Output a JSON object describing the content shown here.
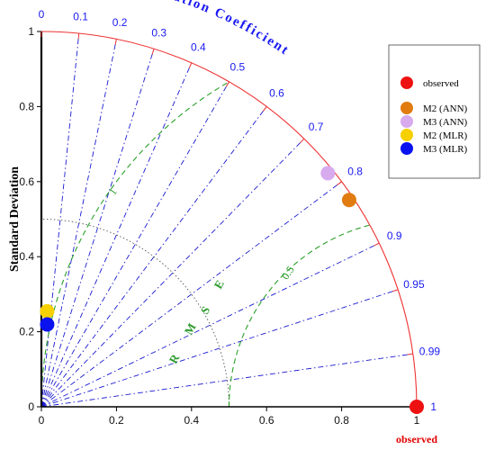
{
  "chart_data": {
    "type": "scatter",
    "subtype": "taylor-diagram",
    "ylabel": "Standard Deviation",
    "xlabel": "observed",
    "arc_title": "Correlation Coefficient",
    "rmse_label": "RMSE",
    "xlim": [
      0,
      1
    ],
    "ylim": [
      0,
      1
    ],
    "std_ticks": [
      {
        "value": 0,
        "label": "0"
      },
      {
        "value": 0.2,
        "label": "0.2"
      },
      {
        "value": 0.4,
        "label": "0.4"
      },
      {
        "value": 0.6,
        "label": "0.6"
      },
      {
        "value": 0.8,
        "label": "0.8"
      },
      {
        "value": 1,
        "label": "1"
      }
    ],
    "correlation_ticks": [
      {
        "value": 0,
        "label": "0"
      },
      {
        "value": 0.1,
        "label": "0.1"
      },
      {
        "value": 0.2,
        "label": "0.2"
      },
      {
        "value": 0.3,
        "label": "0.3"
      },
      {
        "value": 0.4,
        "label": "0.4"
      },
      {
        "value": 0.5,
        "label": "0.5"
      },
      {
        "value": 0.6,
        "label": "0.6"
      },
      {
        "value": 0.7,
        "label": "0.7"
      },
      {
        "value": 0.8,
        "label": "0.8"
      },
      {
        "value": 0.9,
        "label": "0.9"
      },
      {
        "value": 0.95,
        "label": "0.95"
      },
      {
        "value": 0.99,
        "label": "0.99"
      },
      {
        "value": 1,
        "label": "1"
      }
    ],
    "rmse_contours": [
      {
        "value": 0.5,
        "label": "0.5"
      },
      {
        "value": 1,
        "label": "1"
      }
    ],
    "ref_std_arc": 0.5,
    "grid": true,
    "legend_position": "top-right",
    "series": [
      {
        "name": "observed",
        "color": "#ee1111",
        "std": 1.0,
        "corr": 1.0
      },
      {
        "name": "M2 (ANN)",
        "color": "#e07c10",
        "std": 0.988,
        "corr": 0.83
      },
      {
        "name": "M3 (ANN)",
        "color": "#d8aaee",
        "std": 0.985,
        "corr": 0.775
      },
      {
        "name": "M2 (MLR)",
        "color": "#f7d000",
        "std": 0.255,
        "corr": 0.06
      },
      {
        "name": "M3 (MLR)",
        "color": "#0a12f0",
        "std": 0.22,
        "corr": 0.07
      }
    ]
  }
}
